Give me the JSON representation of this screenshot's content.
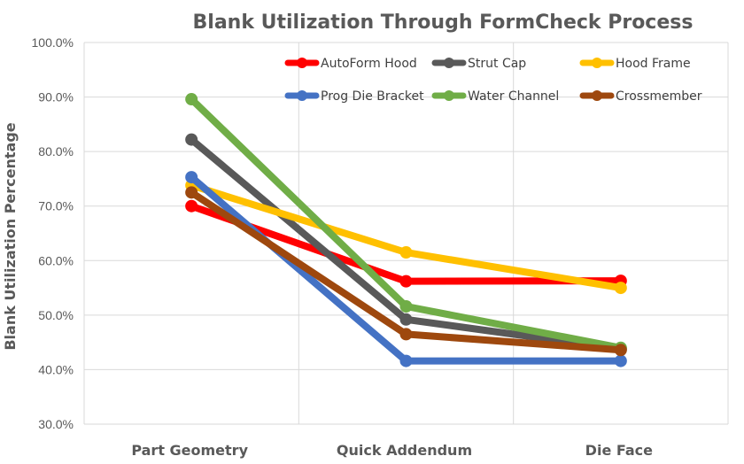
{
  "chart_data": {
    "type": "line",
    "title": "Blank Utilization Through FormCheck Process",
    "xlabel": "",
    "ylabel": "Blank Utilization Percentage",
    "categories": [
      "Part Geometry",
      "Quick Addendum",
      "Die Face"
    ],
    "ylim": [
      30,
      100
    ],
    "yticks": [
      "30.0%",
      "40.0%",
      "50.0%",
      "60.0%",
      "70.0%",
      "80.0%",
      "90.0%",
      "100.0%"
    ],
    "grid": true,
    "legend_position": "top-right",
    "series": [
      {
        "name": "AutoForm Hood",
        "color": "#ff0000",
        "values": [
          70.0,
          56.2,
          56.3
        ]
      },
      {
        "name": "Strut Cap",
        "color": "#595959",
        "values": [
          82.2,
          49.2,
          43.8
        ]
      },
      {
        "name": "Hood Frame",
        "color": "#ffc000",
        "values": [
          73.8,
          61.5,
          55.0
        ]
      },
      {
        "name": "Prog Die Bracket",
        "color": "#4472c4",
        "values": [
          75.3,
          41.6,
          41.6
        ]
      },
      {
        "name": "Water Channel",
        "color": "#70ad47",
        "values": [
          89.6,
          51.6,
          44.0
        ]
      },
      {
        "name": "Crossmember",
        "color": "#9e480e",
        "values": [
          72.5,
          46.5,
          43.6
        ]
      }
    ]
  }
}
